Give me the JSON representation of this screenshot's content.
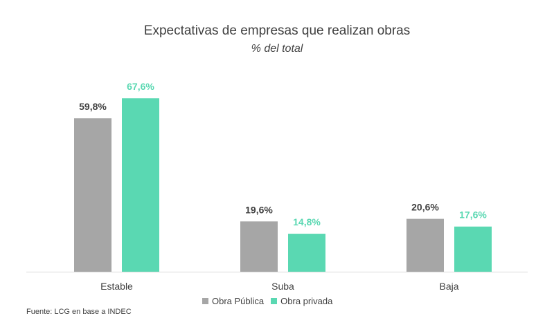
{
  "chart_data": {
    "type": "bar",
    "title": "Expectativas de empresas que realizan obras",
    "subtitle": "% del total",
    "categories": [
      "Estable",
      "Suba",
      "Baja"
    ],
    "series": [
      {
        "name": "Obra Pública",
        "color": "#a6a6a6",
        "label_color": "#404040",
        "values": [
          59.8,
          19.6,
          20.6
        ],
        "labels": [
          "59,8%",
          "19,6%",
          "20,6%"
        ]
      },
      {
        "name": "Obra privada",
        "color": "#5ad8b2",
        "label_color": "#5ad8b2",
        "values": [
          67.6,
          14.8,
          17.6
        ],
        "labels": [
          "67,6%",
          "14,8%",
          "17,6%"
        ]
      }
    ],
    "ylim": [
      0,
      100
    ],
    "legend_position": "bottom",
    "grid": false,
    "source": "Fuente: LCG en base a INDEC"
  }
}
